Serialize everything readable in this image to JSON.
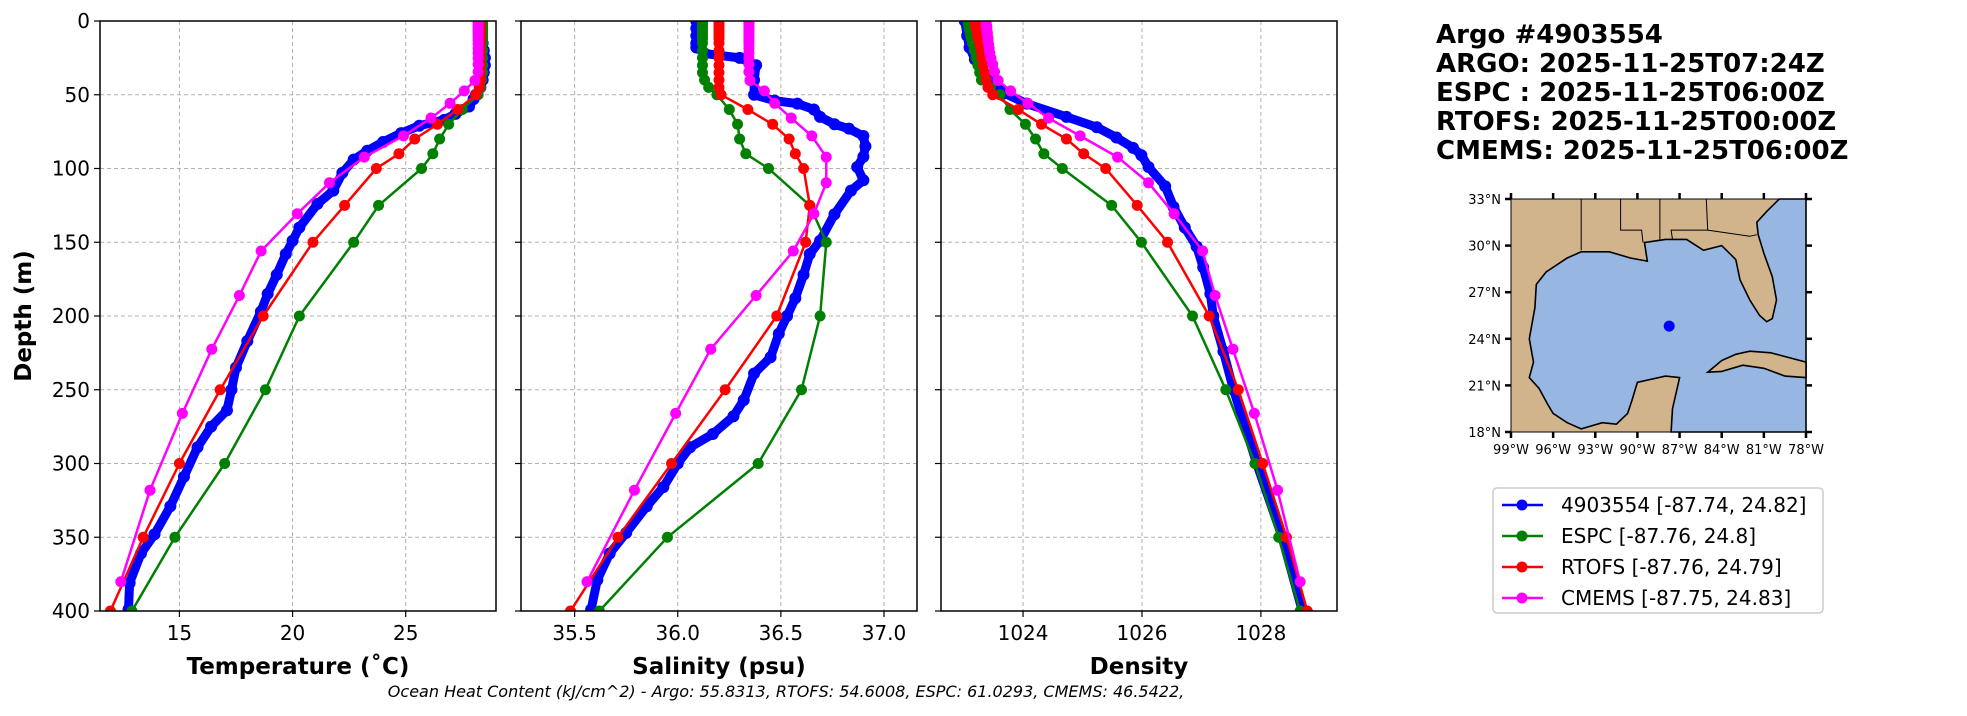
{
  "header": {
    "title": "Argo #4903554",
    "lines": [
      "ARGO: 2025-11-25T07:24Z",
      "ESPC : 2025-11-25T06:00Z",
      "RTOFS: 2025-11-25T00:00Z",
      "CMEMS: 2025-11-25T06:00Z"
    ]
  },
  "footer": "Ocean Heat Content (kJ/cm^2) - Argo: 55.8313,  RTOFS: 54.6008,  ESPC: 61.0293,  CMEMS: 46.5422,",
  "legend": [
    {
      "label": "4903554 [-87.74, 24.82]",
      "color": "#0000ff"
    },
    {
      "label": "ESPC [-87.76, 24.8]",
      "color": "#008000"
    },
    {
      "label": "RTOFS [-87.76, 24.79]",
      "color": "#ff0000"
    },
    {
      "label": "CMEMS [-87.75, 24.83]",
      "color": "#ff00ff"
    }
  ],
  "map": {
    "lat_ticks": [
      "18°N",
      "21°N",
      "24°N",
      "27°N",
      "30°N",
      "33°N"
    ],
    "lon_ticks": [
      "99°W",
      "96°W",
      "93°W",
      "90°W",
      "87°W",
      "84°W",
      "81°W",
      "78°W"
    ],
    "lon_range": [
      -99,
      -78
    ],
    "lat_range": [
      18,
      33
    ],
    "float_position": [
      -87.74,
      24.82
    ],
    "land_color": "#d2b48c",
    "water_color": "#97b6e1",
    "marker_color": "#0000ff"
  },
  "chart_data": [
    {
      "type": "line",
      "xlabel": "Temperature (˚C)",
      "ylabel": "Depth (m)",
      "xlim": [
        11.49,
        28.99
      ],
      "ylim": [
        400,
        0
      ],
      "xticks": [
        "15",
        "20",
        "25"
      ],
      "yticks": [
        "0",
        "50",
        "100",
        "150",
        "200",
        "250",
        "300",
        "350",
        "400"
      ],
      "grid": true,
      "series": [
        {
          "name": "4903554",
          "color": "#0000ff",
          "argo": true,
          "depth": [
            0,
            5,
            10,
            15,
            20,
            25,
            30,
            35,
            40,
            45,
            50,
            53,
            58,
            63,
            67,
            71,
            76,
            82,
            88,
            94,
            103,
            115,
            124,
            140,
            149,
            158,
            172,
            185,
            197,
            217,
            235,
            250,
            264,
            275,
            289,
            309,
            329,
            348,
            361,
            381,
            399
          ],
          "values": [
            28.3,
            28.3,
            28.35,
            28.4,
            28.45,
            28.5,
            28.5,
            28.45,
            28.4,
            28.3,
            28.1,
            28.0,
            27.8,
            27.2,
            26.7,
            25.6,
            24.8,
            24.0,
            23.3,
            22.7,
            22.2,
            21.8,
            21.1,
            20.3,
            20.0,
            19.7,
            19.3,
            18.9,
            18.6,
            18.0,
            17.5,
            17.3,
            17.1,
            16.4,
            15.8,
            15.2,
            14.6,
            13.9,
            13.3,
            12.8,
            12.75
          ]
        },
        {
          "name": "ESPC",
          "color": "#008000",
          "depth": [
            0,
            2,
            4,
            6,
            8,
            10,
            12,
            15,
            20,
            25,
            30,
            35,
            40,
            45,
            50,
            60,
            70,
            80,
            90,
            100,
            125,
            150,
            200,
            250,
            300,
            350,
            400
          ],
          "values": [
            28.4,
            28.4,
            28.4,
            28.4,
            28.4,
            28.4,
            28.4,
            28.4,
            28.4,
            28.4,
            28.4,
            28.4,
            28.35,
            28.3,
            28.2,
            27.5,
            26.9,
            26.5,
            26.2,
            25.7,
            23.8,
            22.7,
            20.3,
            18.8,
            17.0,
            14.8,
            12.9
          ]
        },
        {
          "name": "RTOFS",
          "color": "#ff0000",
          "depth": [
            0,
            2,
            4,
            6,
            8,
            10,
            12,
            15,
            20,
            25,
            30,
            35,
            40,
            45,
            50,
            60,
            70,
            80,
            90,
            100,
            125,
            150,
            200,
            250,
            300,
            350,
            400
          ],
          "values": [
            28.3,
            28.3,
            28.3,
            28.3,
            28.3,
            28.3,
            28.3,
            28.3,
            28.3,
            28.3,
            28.3,
            28.3,
            28.3,
            28.25,
            28.1,
            27.3,
            26.4,
            25.4,
            24.7,
            23.7,
            22.3,
            20.9,
            18.7,
            16.8,
            15.0,
            13.4,
            11.95
          ]
        },
        {
          "name": "CMEMS",
          "color": "#ff00ff",
          "depth": [
            0.5,
            1.5,
            2.6,
            3.8,
            5.1,
            6.4,
            7.9,
            9.6,
            11.4,
            13.5,
            15.8,
            18.5,
            21.6,
            25.2,
            29.4,
            34.4,
            40.3,
            47.4,
            55.8,
            65.8,
            77.9,
            92.3,
            109.7,
            130.7,
            155.9,
            186.1,
            222.5,
            266.0,
            318.1,
            380.2
          ],
          "values": [
            28.2,
            28.2,
            28.2,
            28.2,
            28.2,
            28.2,
            28.2,
            28.2,
            28.2,
            28.2,
            28.2,
            28.2,
            28.2,
            28.2,
            28.2,
            28.2,
            28.06,
            27.59,
            26.96,
            26.12,
            24.9,
            23.17,
            21.63,
            20.21,
            18.61,
            17.65,
            16.43,
            15.13,
            13.7,
            12.41
          ]
        }
      ]
    },
    {
      "type": "line",
      "xlabel": "Salinity (psu)",
      "xlim": [
        35.24,
        37.16
      ],
      "ylim": [
        400,
        0
      ],
      "xticks": [
        "35.5",
        "36.0",
        "36.5",
        "37.0"
      ],
      "grid": true,
      "series": [
        {
          "name": "4903554",
          "color": "#0000ff",
          "argo": true,
          "depth": [
            0,
            5,
            10,
            15,
            18,
            22,
            25,
            30,
            40,
            50,
            54,
            56,
            60,
            65,
            70,
            73,
            78,
            85,
            92,
            99,
            108,
            115,
            131,
            149,
            158,
            172,
            188,
            200,
            212,
            228,
            239,
            257,
            268,
            280,
            289,
            300,
            316,
            329,
            347,
            361,
            379,
            399
          ],
          "values": [
            36.09,
            36.09,
            36.09,
            36.09,
            36.09,
            36.13,
            36.3,
            36.38,
            36.37,
            36.37,
            36.47,
            36.58,
            36.66,
            36.69,
            36.76,
            36.83,
            36.9,
            36.91,
            36.9,
            36.87,
            36.9,
            36.84,
            36.76,
            36.69,
            36.64,
            36.61,
            36.57,
            36.53,
            36.49,
            36.45,
            36.37,
            36.32,
            36.27,
            36.17,
            36.06,
            36.0,
            35.93,
            35.85,
            35.75,
            35.67,
            35.61,
            35.58
          ]
        },
        {
          "name": "ESPC",
          "color": "#008000",
          "depth": [
            0,
            2,
            4,
            6,
            8,
            10,
            12,
            15,
            20,
            25,
            30,
            35,
            40,
            45,
            50,
            60,
            70,
            80,
            90,
            100,
            125,
            150,
            200,
            250,
            300,
            350,
            400
          ],
          "values": [
            36.12,
            36.12,
            36.12,
            36.12,
            36.12,
            36.12,
            36.12,
            36.12,
            36.12,
            36.12,
            36.12,
            36.12,
            36.13,
            36.15,
            36.19,
            36.25,
            36.29,
            36.3,
            36.33,
            36.44,
            36.64,
            36.72,
            36.69,
            36.6,
            36.39,
            35.95,
            35.62
          ]
        },
        {
          "name": "RTOFS",
          "color": "#ff0000",
          "depth": [
            0,
            2,
            4,
            6,
            8,
            10,
            12,
            15,
            20,
            25,
            30,
            35,
            40,
            45,
            50,
            60,
            70,
            80,
            90,
            100,
            125,
            150,
            200,
            250,
            300,
            350,
            400
          ],
          "values": [
            36.2,
            36.2,
            36.2,
            36.2,
            36.2,
            36.2,
            36.2,
            36.2,
            36.2,
            36.2,
            36.2,
            36.2,
            36.2,
            36.2,
            36.21,
            36.34,
            36.46,
            36.54,
            36.57,
            36.61,
            36.64,
            36.62,
            36.48,
            36.23,
            35.97,
            35.71,
            35.48
          ]
        },
        {
          "name": "CMEMS",
          "color": "#ff00ff",
          "depth": [
            0.5,
            1.5,
            2.6,
            3.8,
            5.1,
            6.4,
            7.9,
            9.6,
            11.4,
            13.5,
            15.8,
            18.5,
            21.6,
            25.2,
            29.4,
            34.4,
            40.3,
            47.4,
            55.8,
            65.8,
            77.9,
            92.3,
            109.7,
            130.7,
            155.9,
            186.1,
            222.5,
            266.0,
            318.1,
            380.2
          ],
          "values": [
            36.345,
            36.345,
            36.345,
            36.345,
            36.345,
            36.345,
            36.345,
            36.345,
            36.345,
            36.345,
            36.345,
            36.345,
            36.345,
            36.345,
            36.345,
            36.345,
            36.35,
            36.42,
            36.47,
            36.55,
            36.65,
            36.72,
            36.72,
            36.66,
            36.56,
            36.38,
            36.16,
            35.99,
            35.79,
            35.56
          ]
        }
      ]
    },
    {
      "type": "line",
      "xlabel": "Density",
      "xlim": [
        1022.62,
        1029.28
      ],
      "ylim": [
        400,
        0
      ],
      "xticks": [
        "1024",
        "1026",
        "1028"
      ],
      "grid": true,
      "series": [
        {
          "name": "4903554",
          "color": "#0000ff",
          "argo": true,
          "depth": [
            0,
            10,
            18,
            26,
            34,
            40,
            49,
            56,
            65,
            72,
            79,
            86,
            91,
            99,
            112,
            126,
            140,
            153,
            167,
            185,
            200,
            224,
            250,
            300,
            349,
            399
          ],
          "values": [
            1023.02,
            1023.06,
            1023.1,
            1023.19,
            1023.3,
            1023.44,
            1023.69,
            1024.06,
            1024.73,
            1025.24,
            1025.57,
            1025.85,
            1025.99,
            1026.11,
            1026.39,
            1026.53,
            1026.72,
            1026.92,
            1027.03,
            1027.15,
            1027.2,
            1027.37,
            1027.54,
            1027.93,
            1028.35,
            1028.69
          ]
        },
        {
          "name": "ESPC",
          "color": "#008000",
          "depth": [
            0,
            2,
            4,
            6,
            8,
            10,
            12,
            15,
            20,
            25,
            30,
            35,
            40,
            45,
            50,
            60,
            70,
            80,
            90,
            100,
            125,
            150,
            200,
            250,
            300,
            350,
            400
          ],
          "values": [
            1023.07,
            1023.08,
            1023.09,
            1023.1,
            1023.11,
            1023.12,
            1023.13,
            1023.15,
            1023.18,
            1023.21,
            1023.24,
            1023.27,
            1023.3,
            1023.45,
            1023.61,
            1023.78,
            1024.04,
            1024.21,
            1024.35,
            1024.66,
            1025.49,
            1025.99,
            1026.85,
            1027.41,
            1027.9,
            1028.3,
            1028.66
          ]
        },
        {
          "name": "RTOFS",
          "color": "#ff0000",
          "depth": [
            0,
            2,
            4,
            6,
            8,
            10,
            12,
            15,
            20,
            25,
            30,
            35,
            40,
            45,
            50,
            60,
            70,
            80,
            90,
            100,
            125,
            150,
            200,
            250,
            300,
            350,
            400
          ],
          "values": [
            1023.19,
            1023.2,
            1023.21,
            1023.22,
            1023.23,
            1023.24,
            1023.25,
            1023.27,
            1023.29,
            1023.31,
            1023.33,
            1023.36,
            1023.38,
            1023.41,
            1023.49,
            1023.92,
            1024.31,
            1024.73,
            1025.02,
            1025.39,
            1025.92,
            1026.43,
            1027.13,
            1027.62,
            1028.03,
            1028.43,
            1028.78
          ]
        },
        {
          "name": "CMEMS",
          "color": "#ff00ff",
          "depth": [
            0.5,
            1.5,
            2.6,
            3.8,
            5.1,
            6.4,
            7.9,
            9.6,
            11.4,
            13.5,
            15.8,
            18.5,
            21.6,
            25.2,
            29.4,
            34.4,
            40.3,
            47.4,
            55.8,
            65.8,
            77.9,
            92.3,
            109.7,
            130.7,
            155.9,
            186.1,
            222.5,
            266.0,
            318.1,
            380.2
          ],
          "values": [
            1023.38,
            1023.38,
            1023.38,
            1023.39,
            1023.39,
            1023.39,
            1023.4,
            1023.4,
            1023.41,
            1023.41,
            1023.42,
            1023.43,
            1023.44,
            1023.46,
            1023.49,
            1023.52,
            1023.58,
            1023.79,
            1024.08,
            1024.43,
            1024.96,
            1025.59,
            1026.11,
            1026.54,
            1027.02,
            1027.23,
            1027.53,
            1027.89,
            1028.28,
            1028.66
          ]
        }
      ]
    }
  ]
}
